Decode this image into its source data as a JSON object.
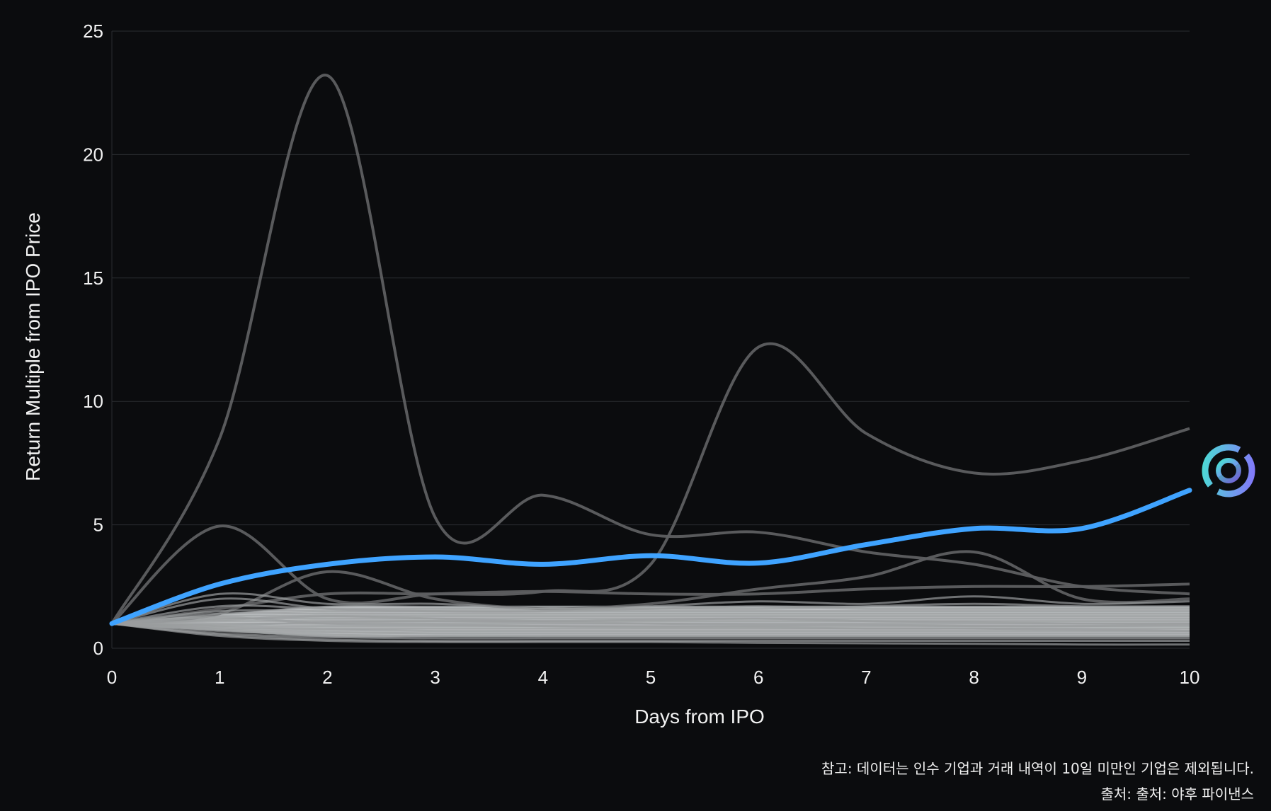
{
  "chart_data": {
    "type": "line",
    "xlabel": "Days from IPO",
    "ylabel": "Return Multiple from IPO Price",
    "xlim": [
      0,
      10
    ],
    "ylim": [
      0,
      25
    ],
    "x_ticks": [
      "0",
      "1",
      "2",
      "3",
      "4",
      "5",
      "6",
      "7",
      "8",
      "9",
      "10"
    ],
    "y_ticks": [
      "0",
      "5",
      "10",
      "15",
      "20",
      "25"
    ],
    "grid": "horizontal",
    "x": [
      0,
      1,
      2,
      3,
      4,
      5,
      6,
      7,
      8,
      9,
      10
    ],
    "highlight_series": {
      "values": [
        1.0,
        2.6,
        3.4,
        3.7,
        3.4,
        3.75,
        3.45,
        4.2,
        4.85,
        4.85,
        6.4
      ],
      "color": "#3fa3ff"
    },
    "series": [
      {
        "values": [
          1.0,
          8.5,
          23.2,
          5.3,
          6.2,
          4.6,
          4.7,
          3.9,
          3.4,
          2.5,
          2.2
        ]
      },
      {
        "values": [
          1.0,
          1.6,
          2.2,
          2.2,
          2.3,
          3.4,
          12.2,
          8.7,
          7.1,
          7.6,
          8.9
        ]
      },
      {
        "values": [
          1.0,
          4.95,
          2.0,
          2.2,
          2.3,
          2.2,
          2.2,
          2.4,
          2.5,
          2.5,
          2.6
        ]
      },
      {
        "values": [
          1.0,
          1.4,
          3.1,
          2.0,
          1.6,
          1.8,
          2.4,
          2.9,
          3.9,
          2.0,
          2.0
        ]
      },
      {
        "values": [
          1.0,
          2.2,
          1.8,
          1.8,
          1.6,
          1.7,
          1.9,
          1.8,
          2.1,
          1.8,
          1.9
        ]
      },
      {
        "values": [
          1.0,
          2.0,
          1.6,
          1.5,
          1.5,
          1.6,
          1.6,
          1.7,
          1.8,
          1.7,
          1.7
        ]
      },
      {
        "values": [
          1.0,
          1.7,
          1.6,
          1.6,
          1.6,
          1.6,
          1.7,
          1.6,
          1.6,
          1.6,
          1.6
        ]
      },
      {
        "values": [
          1.0,
          1.5,
          1.5,
          1.5,
          1.5,
          1.5,
          1.5,
          1.5,
          1.5,
          1.5,
          1.5
        ]
      },
      {
        "values": [
          1.0,
          1.4,
          1.4,
          1.4,
          1.4,
          1.4,
          1.4,
          1.4,
          1.4,
          1.4,
          1.4
        ]
      },
      {
        "values": [
          1.0,
          1.3,
          1.3,
          1.3,
          1.3,
          1.3,
          1.3,
          1.3,
          1.3,
          1.3,
          1.3
        ]
      },
      {
        "values": [
          1.0,
          1.2,
          1.2,
          1.2,
          1.2,
          1.2,
          1.2,
          1.2,
          1.2,
          1.2,
          1.2
        ]
      },
      {
        "values": [
          1.0,
          1.1,
          1.1,
          1.1,
          1.1,
          1.1,
          1.1,
          1.1,
          1.1,
          1.1,
          1.1
        ]
      },
      {
        "values": [
          1.0,
          1.0,
          1.0,
          1.0,
          1.0,
          1.0,
          1.0,
          1.0,
          1.0,
          1.0,
          1.0
        ]
      },
      {
        "values": [
          1.0,
          0.9,
          0.9,
          0.9,
          0.9,
          0.9,
          0.9,
          0.9,
          0.9,
          0.9,
          0.9
        ]
      },
      {
        "values": [
          1.0,
          0.85,
          0.8,
          0.8,
          0.8,
          0.8,
          0.8,
          0.8,
          0.8,
          0.8,
          0.8
        ]
      },
      {
        "values": [
          1.0,
          0.8,
          0.75,
          0.7,
          0.7,
          0.7,
          0.7,
          0.7,
          0.7,
          0.7,
          0.7
        ]
      },
      {
        "values": [
          1.0,
          0.75,
          0.65,
          0.6,
          0.6,
          0.6,
          0.6,
          0.6,
          0.6,
          0.6,
          0.6
        ]
      },
      {
        "values": [
          1.0,
          0.7,
          0.55,
          0.5,
          0.5,
          0.5,
          0.5,
          0.5,
          0.5,
          0.5,
          0.5
        ]
      },
      {
        "values": [
          1.0,
          0.6,
          0.45,
          0.4,
          0.4,
          0.4,
          0.4,
          0.4,
          0.4,
          0.4,
          0.4
        ]
      },
      {
        "values": [
          1.0,
          0.55,
          0.35,
          0.3,
          0.3,
          0.3,
          0.3,
          0.3,
          0.3,
          0.3,
          0.3
        ]
      },
      {
        "values": [
          1.0,
          0.5,
          0.3,
          0.25,
          0.25,
          0.25,
          0.22,
          0.2,
          0.18,
          0.15,
          0.15
        ]
      },
      {
        "values": [
          1.0,
          1.25,
          1.0,
          0.95,
          0.9,
          0.85,
          0.85,
          0.8,
          0.8,
          0.75,
          0.7
        ]
      },
      {
        "values": [
          1.0,
          1.15,
          1.3,
          1.2,
          1.1,
          1.15,
          1.2,
          1.1,
          1.05,
          1.0,
          1.0
        ]
      },
      {
        "values": [
          1.0,
          0.95,
          1.05,
          1.1,
          1.05,
          1.0,
          0.95,
          0.95,
          0.9,
          0.9,
          0.95
        ]
      }
    ],
    "grey_color": "#8c8c8c",
    "fan_color": "#c7cacc"
  },
  "logo": {
    "name": "circle-logo-icon"
  },
  "footnotes": {
    "note": "참고: 데이터는 인수 기업과 거래 내역이 10일 미만인 기업은 제외됩니다.",
    "source": "출처: 출처: 야후 파이낸스"
  }
}
